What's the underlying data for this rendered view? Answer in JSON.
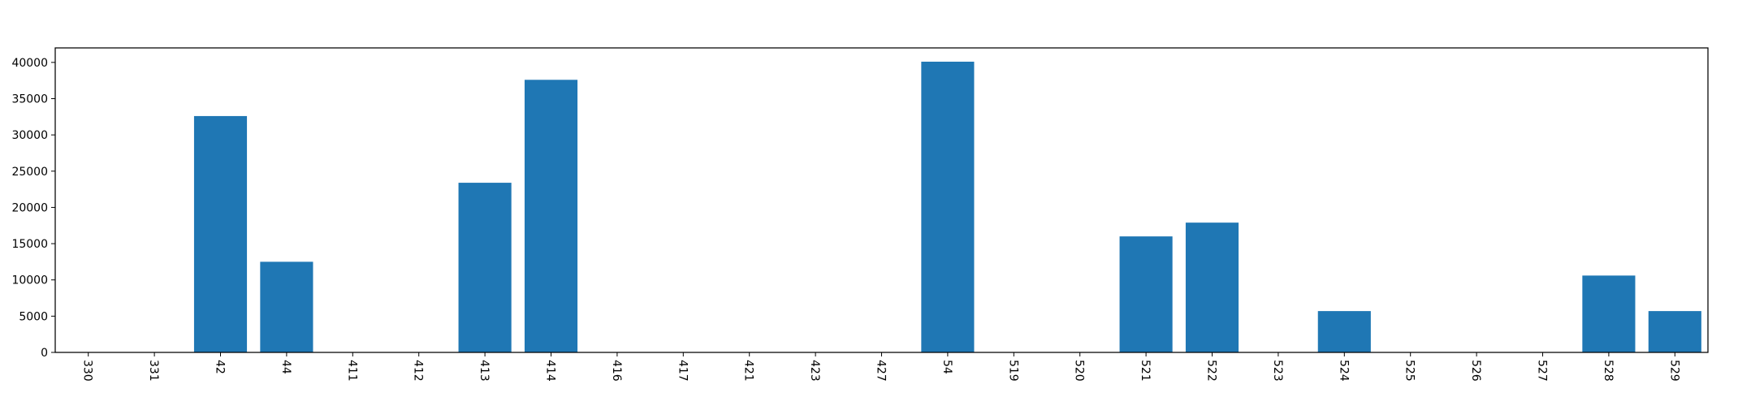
{
  "chart_data": {
    "type": "bar",
    "title": "",
    "xlabel": "",
    "ylabel": "",
    "categories": [
      "330",
      "331",
      "42",
      "44",
      "411",
      "412",
      "413",
      "414",
      "416",
      "417",
      "421",
      "423",
      "427",
      "54",
      "519",
      "520",
      "521",
      "522",
      "523",
      "524",
      "525",
      "526",
      "527",
      "528",
      "529"
    ],
    "values": [
      0,
      0,
      32600,
      12500,
      0,
      0,
      23400,
      37600,
      0,
      0,
      0,
      0,
      0,
      40100,
      0,
      0,
      16000,
      17900,
      0,
      5700,
      0,
      0,
      0,
      10600,
      5700
    ],
    "ylim": [
      0,
      42000
    ],
    "yticks": [
      0,
      5000,
      10000,
      15000,
      20000,
      25000,
      30000,
      35000,
      40000
    ],
    "ytick_labels": [
      "0",
      "5000",
      "10000",
      "15000",
      "20000",
      "25000",
      "30000",
      "35000",
      "40000"
    ],
    "grid": false,
    "bar_color": "#1f77b4",
    "xtick_rotation": "rotated -90"
  }
}
